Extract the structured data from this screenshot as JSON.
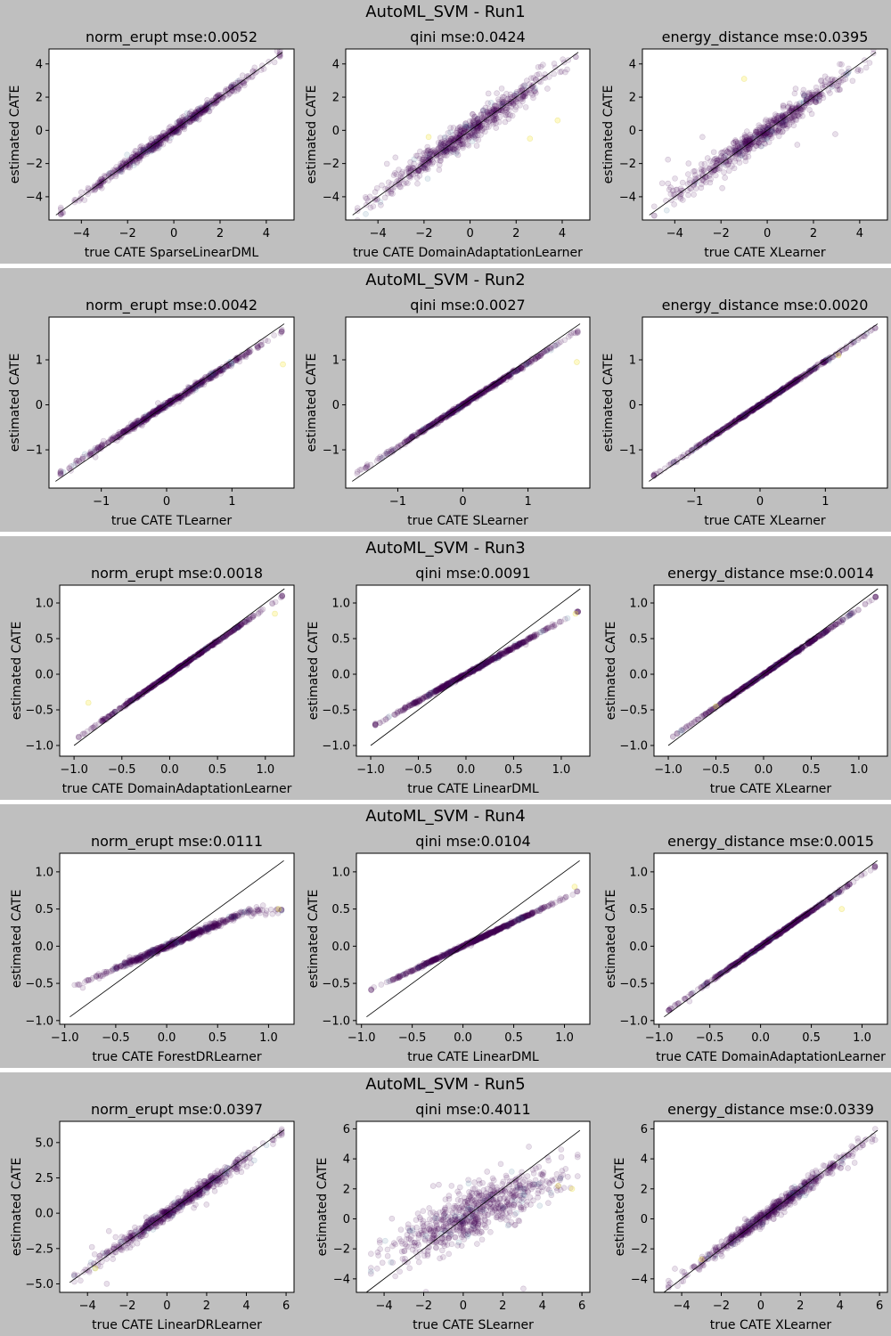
{
  "figure": {
    "background_colors": {
      "band": "#bfbfbf",
      "axes": "#ffffff",
      "separator": "#ffffff",
      "points": "#440154",
      "diagonal": "#000000"
    }
  },
  "chart_data": [
    {
      "run_title": "AutoML_SVM - Run1",
      "panels": [
        {
          "type": "scatter",
          "title": "norm_erupt mse:0.0052",
          "xlabel": "true CATE SparseLinearDML",
          "ylabel": "estimated CATE",
          "xlim": [
            -5.4,
            5.2
          ],
          "ylim": [
            -5.4,
            4.9
          ],
          "xticks": [
            -4,
            -2,
            0,
            2,
            4
          ],
          "yticks": [
            -4,
            -2,
            0,
            2,
            4
          ],
          "xtick_labels": [
            "−4",
            "−2",
            "0",
            "2",
            "4"
          ],
          "ytick_labels": [
            "−4",
            "−2",
            "0",
            "2",
            "4"
          ],
          "diagonal": [
            -5.1,
            4.7
          ],
          "spread": 0.15,
          "slope": 1.0,
          "point_count": 650,
          "outlier_count": 0,
          "yellow_outliers": []
        },
        {
          "type": "scatter",
          "title": "qini mse:0.0424",
          "xlabel": "true CATE DomainAdaptationLearner",
          "ylabel": "estimated CATE",
          "xlim": [
            -5.4,
            5.2
          ],
          "ylim": [
            -5.4,
            4.9
          ],
          "xticks": [
            -4,
            -2,
            0,
            2,
            4
          ],
          "yticks": [
            -4,
            -2,
            0,
            2,
            4
          ],
          "xtick_labels": [
            "−4",
            "−2",
            "0",
            "2",
            "4"
          ],
          "ytick_labels": [
            "−4",
            "−2",
            "0",
            "2",
            "4"
          ],
          "diagonal": [
            -5.1,
            4.7
          ],
          "spread": 0.35,
          "slope": 0.97,
          "point_count": 650,
          "outlier_count": 25,
          "yellow_outliers": [
            [
              3.8,
              0.6
            ],
            [
              2.6,
              -0.5
            ],
            [
              -1.8,
              -0.4
            ]
          ]
        },
        {
          "type": "scatter",
          "title": "energy_distance mse:0.0395",
          "xlabel": "true CATE XLearner",
          "ylabel": "estimated CATE",
          "xlim": [
            -5.4,
            5.2
          ],
          "ylim": [
            -5.4,
            4.9
          ],
          "xticks": [
            -4,
            -2,
            0,
            2,
            4
          ],
          "yticks": [
            -4,
            -2,
            0,
            2,
            4
          ],
          "xtick_labels": [
            "−4",
            "−2",
            "0",
            "2",
            "4"
          ],
          "ytick_labels": [
            "−4",
            "−2",
            "0",
            "2",
            "4"
          ],
          "diagonal": [
            -5.1,
            4.7
          ],
          "spread": 0.32,
          "slope": 0.97,
          "point_count": 650,
          "outlier_count": 25,
          "yellow_outliers": [
            [
              -1.0,
              3.1
            ]
          ]
        }
      ]
    },
    {
      "run_title": "AutoML_SVM - Run2",
      "panels": [
        {
          "type": "scatter",
          "title": "norm_erupt mse:0.0042",
          "xlabel": "true CATE TLearner",
          "ylabel": "estimated CATE",
          "xlim": [
            -1.8,
            1.95
          ],
          "ylim": [
            -1.85,
            1.95
          ],
          "xticks": [
            -1,
            0,
            1
          ],
          "yticks": [
            -1,
            0,
            1
          ],
          "xtick_labels": [
            "−1",
            "0",
            "1"
          ],
          "ytick_labels": [
            "−1",
            "0",
            "1"
          ],
          "diagonal": [
            -1.7,
            1.8
          ],
          "spread": 0.08,
          "slope": 0.93,
          "point_count": 650,
          "outlier_count": 12,
          "yellow_outliers": [
            [
              1.78,
              0.9
            ]
          ]
        },
        {
          "type": "scatter",
          "title": "qini mse:0.0027",
          "xlabel": "true CATE SLearner",
          "ylabel": "estimated CATE",
          "xlim": [
            -1.8,
            1.95
          ],
          "ylim": [
            -1.85,
            1.95
          ],
          "xticks": [
            -1,
            0,
            1
          ],
          "yticks": [
            -1,
            0,
            1
          ],
          "xtick_labels": [
            "−1",
            "0",
            "1"
          ],
          "ytick_labels": [
            "−1",
            "0",
            "1"
          ],
          "diagonal": [
            -1.7,
            1.8
          ],
          "spread": 0.05,
          "slope": 0.93,
          "point_count": 650,
          "outlier_count": 8,
          "yellow_outliers": [
            [
              1.75,
              0.95
            ]
          ]
        },
        {
          "type": "scatter",
          "title": "energy_distance mse:0.0020",
          "xlabel": "true CATE XLearner",
          "ylabel": "estimated CATE",
          "xlim": [
            -1.8,
            1.95
          ],
          "ylim": [
            -1.85,
            1.95
          ],
          "xticks": [
            -1,
            0,
            1
          ],
          "yticks": [
            -1,
            0,
            1
          ],
          "xtick_labels": [
            "−1",
            "0",
            "1"
          ],
          "ytick_labels": [
            "−1",
            "0",
            "1"
          ],
          "diagonal": [
            -1.7,
            1.8
          ],
          "spread": 0.04,
          "slope": 0.97,
          "point_count": 650,
          "outlier_count": 5,
          "yellow_outliers": [
            [
              1.2,
              1.1
            ]
          ]
        }
      ]
    },
    {
      "run_title": "AutoML_SVM - Run3",
      "panels": [
        {
          "type": "scatter",
          "title": "norm_erupt mse:0.0018",
          "xlabel": "true CATE DomainAdaptationLearner",
          "ylabel": "estimated CATE",
          "xlim": [
            -1.15,
            1.3
          ],
          "ylim": [
            -1.15,
            1.25
          ],
          "xticks": [
            -1.0,
            -0.5,
            0.0,
            0.5,
            1.0
          ],
          "yticks": [
            -1.0,
            -0.5,
            0.0,
            0.5,
            1.0
          ],
          "xtick_labels": [
            "−1.0",
            "−0.5",
            "0.0",
            "0.5",
            "1.0"
          ],
          "ytick_labels": [
            "−1.0",
            "−0.5",
            "0.0",
            "0.5",
            "1.0"
          ],
          "diagonal": [
            -1.0,
            1.2
          ],
          "spread": 0.03,
          "slope": 0.93,
          "point_count": 650,
          "outlier_count": 10,
          "yellow_outliers": [
            [
              -0.85,
              -0.4
            ],
            [
              1.1,
              0.85
            ]
          ]
        },
        {
          "type": "scatter",
          "title": "qini mse:0.0091",
          "xlabel": "true CATE LinearDML",
          "ylabel": "estimated CATE",
          "xlim": [
            -1.15,
            1.3
          ],
          "ylim": [
            -1.15,
            1.25
          ],
          "xticks": [
            -1.0,
            -0.5,
            0.0,
            0.5,
            1.0
          ],
          "yticks": [
            -1.0,
            -0.5,
            0.0,
            0.5,
            1.0
          ],
          "xtick_labels": [
            "−1.0",
            "−0.5",
            "0.0",
            "0.5",
            "1.0"
          ],
          "ytick_labels": [
            "−1.0",
            "−0.5",
            "0.0",
            "0.5",
            "1.0"
          ],
          "diagonal": [
            -1.0,
            1.2
          ],
          "spread": 0.04,
          "slope": 0.75,
          "point_count": 650,
          "outlier_count": 6,
          "yellow_outliers": [
            [
              1.15,
              0.85
            ]
          ]
        },
        {
          "type": "scatter",
          "title": "energy_distance mse:0.0014",
          "xlabel": "true CATE XLearner",
          "ylabel": "estimated CATE",
          "xlim": [
            -1.15,
            1.3
          ],
          "ylim": [
            -1.15,
            1.25
          ],
          "xticks": [
            -1.0,
            -0.5,
            0.0,
            0.5,
            1.0
          ],
          "yticks": [
            -1.0,
            -0.5,
            0.0,
            0.5,
            1.0
          ],
          "xtick_labels": [
            "−1.0",
            "−0.5",
            "0.0",
            "0.5",
            "1.0"
          ],
          "ytick_labels": [
            "−1.0",
            "−0.5",
            "0.0",
            "0.5",
            "1.0"
          ],
          "diagonal": [
            -1.0,
            1.2
          ],
          "spread": 0.03,
          "slope": 0.92,
          "point_count": 650,
          "outlier_count": 6,
          "yellow_outliers": [
            [
              -0.5,
              -0.45
            ]
          ]
        }
      ]
    },
    {
      "run_title": "AutoML_SVM - Run4",
      "panels": [
        {
          "type": "scatter",
          "title": "norm_erupt mse:0.0111",
          "xlabel": "true CATE ForestDRLearner",
          "ylabel": "estimated CATE",
          "xlim": [
            -1.05,
            1.25
          ],
          "ylim": [
            -1.05,
            1.25
          ],
          "xticks": [
            -1.0,
            -0.5,
            0.0,
            0.5,
            1.0
          ],
          "yticks": [
            -1.0,
            -0.5,
            0.0,
            0.5,
            1.0
          ],
          "xtick_labels": [
            "−1.0",
            "−0.5",
            "0.0",
            "0.5",
            "1.0"
          ],
          "ytick_labels": [
            "−1.0",
            "−0.5",
            "0.0",
            "0.5",
            "1.0"
          ],
          "diagonal": [
            -0.95,
            1.15
          ],
          "spread": 0.08,
          "slope": 0.6,
          "clip_max": 0.5,
          "point_count": 650,
          "outlier_count": 15,
          "yellow_outliers": [
            [
              1.1,
              0.5
            ]
          ]
        },
        {
          "type": "scatter",
          "title": "qini mse:0.0104",
          "xlabel": "true CATE LinearDML",
          "ylabel": "estimated CATE",
          "xlim": [
            -1.05,
            1.25
          ],
          "ylim": [
            -1.05,
            1.25
          ],
          "xticks": [
            -1.0,
            -0.5,
            0.0,
            0.5,
            1.0
          ],
          "yticks": [
            -1.0,
            -0.5,
            0.0,
            0.5,
            1.0
          ],
          "xtick_labels": [
            "−1.0",
            "−0.5",
            "0.0",
            "0.5",
            "1.0"
          ],
          "ytick_labels": [
            "−1.0",
            "−0.5",
            "0.0",
            "0.5",
            "1.0"
          ],
          "diagonal": [
            -0.95,
            1.15
          ],
          "spread": 0.035,
          "slope": 0.65,
          "point_count": 650,
          "outlier_count": 6,
          "yellow_outliers": [
            [
              1.1,
              0.8
            ]
          ]
        },
        {
          "type": "scatter",
          "title": "energy_distance mse:0.0015",
          "xlabel": "true CATE DomainAdaptationLearner",
          "ylabel": "estimated CATE",
          "xlim": [
            -1.05,
            1.25
          ],
          "ylim": [
            -1.05,
            1.25
          ],
          "xticks": [
            -1.0,
            -0.5,
            0.0,
            0.5,
            1.0
          ],
          "yticks": [
            -1.0,
            -0.5,
            0.0,
            0.5,
            1.0
          ],
          "xtick_labels": [
            "−1.0",
            "−0.5",
            "0.0",
            "0.5",
            "1.0"
          ],
          "ytick_labels": [
            "−1.0",
            "−0.5",
            "0.0",
            "0.5",
            "1.0"
          ],
          "diagonal": [
            -0.95,
            1.15
          ],
          "spread": 0.035,
          "slope": 0.95,
          "point_count": 650,
          "outlier_count": 6,
          "yellow_outliers": [
            [
              0.8,
              0.5
            ]
          ]
        }
      ]
    },
    {
      "run_title": "AutoML_SVM - Run5",
      "panels": [
        {
          "type": "scatter",
          "title": "norm_erupt mse:0.0397",
          "xlabel": "true CATE LinearDRLearner",
          "ylabel": "estimated CATE",
          "xlim": [
            -5.4,
            6.4
          ],
          "ylim": [
            -5.6,
            6.5
          ],
          "xticks": [
            -4,
            -2,
            0,
            2,
            4,
            6
          ],
          "yticks": [
            -5.0,
            -2.5,
            0.0,
            2.5,
            5.0
          ],
          "xtick_labels": [
            "−4",
            "−2",
            "0",
            "2",
            "4",
            "6"
          ],
          "ytick_labels": [
            "−5.0",
            "−2.5",
            "0.0",
            "2.5",
            "5.0"
          ],
          "diagonal": [
            -4.9,
            5.9
          ],
          "spread": 0.2,
          "slope": 0.97,
          "point_count": 650,
          "outlier_count": 10,
          "yellow_outliers": [
            [
              -3.6,
              -3.9
            ]
          ]
        },
        {
          "type": "scatter",
          "title": "qini mse:0.4011",
          "xlabel": "true CATE SLearner",
          "ylabel": "estimated CATE",
          "xlim": [
            -5.4,
            6.4
          ],
          "ylim": [
            -4.9,
            6.5
          ],
          "xticks": [
            -4,
            -2,
            0,
            2,
            4,
            6
          ],
          "yticks": [
            -4,
            -2,
            0,
            2,
            4,
            6
          ],
          "xtick_labels": [
            "−4",
            "−2",
            "0",
            "2",
            "4",
            "6"
          ],
          "ytick_labels": [
            "−4",
            "−2",
            "0",
            "2",
            "4",
            "6"
          ],
          "diagonal": [
            -4.9,
            5.9
          ],
          "spread": 0.7,
          "slope": 0.6,
          "point_count": 700,
          "outlier_count": 20,
          "yellow_outliers": [
            [
              5.5,
              2.0
            ],
            [
              4.8,
              2.2
            ]
          ]
        },
        {
          "type": "scatter",
          "title": "energy_distance mse:0.0339",
          "xlabel": "true CATE XLearner",
          "ylabel": "estimated CATE",
          "xlim": [
            -5.4,
            6.4
          ],
          "ylim": [
            -4.9,
            6.5
          ],
          "xticks": [
            -4,
            -2,
            0,
            2,
            4,
            6
          ],
          "yticks": [
            -4,
            -2,
            0,
            2,
            4,
            6
          ],
          "xtick_labels": [
            "−4",
            "−2",
            "0",
            "2",
            "4",
            "6"
          ],
          "ytick_labels": [
            "−4",
            "−2",
            "0",
            "2",
            "4",
            "6"
          ],
          "diagonal": [
            -4.9,
            5.9
          ],
          "spread": 0.2,
          "slope": 0.97,
          "point_count": 650,
          "outlier_count": 10,
          "yellow_outliers": [
            [
              -3.0,
              -2.7
            ]
          ]
        }
      ]
    }
  ]
}
